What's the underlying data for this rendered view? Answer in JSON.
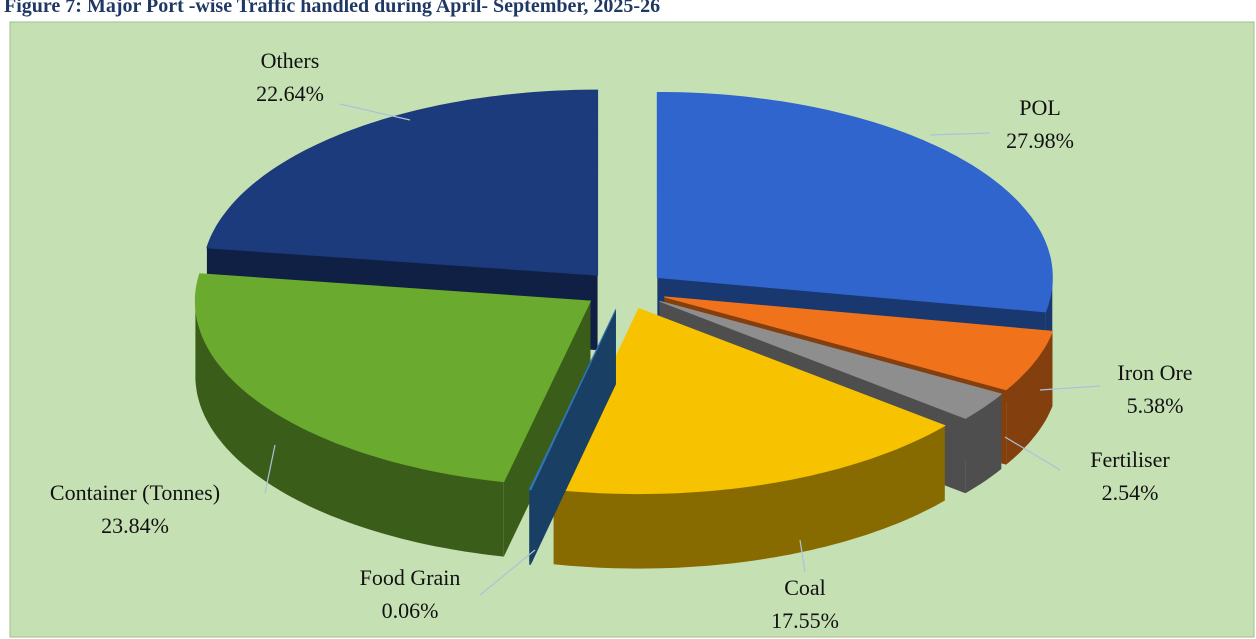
{
  "chart_data": {
    "type": "pie",
    "title": "Figure 7: Major Port -wise Traffic handled during April- September, 2025-26",
    "categories": [
      "POL",
      "Iron Ore",
      "Fertiliser",
      "Coal",
      "Food Grain",
      "Container (Tonnes)",
      "Others"
    ],
    "values": [
      27.98,
      5.38,
      2.54,
      17.55,
      0.06,
      23.84,
      22.64
    ],
    "value_labels": [
      "27.98%",
      "5.38%",
      "2.54%",
      "17.55%",
      "0.06%",
      "23.84%",
      "22.64%"
    ],
    "colors": [
      "#2f65cc",
      "#f0731c",
      "#8e8e8e",
      "#f7c200",
      "#2e75b6",
      "#6aab2f",
      "#1b3b7c"
    ]
  }
}
